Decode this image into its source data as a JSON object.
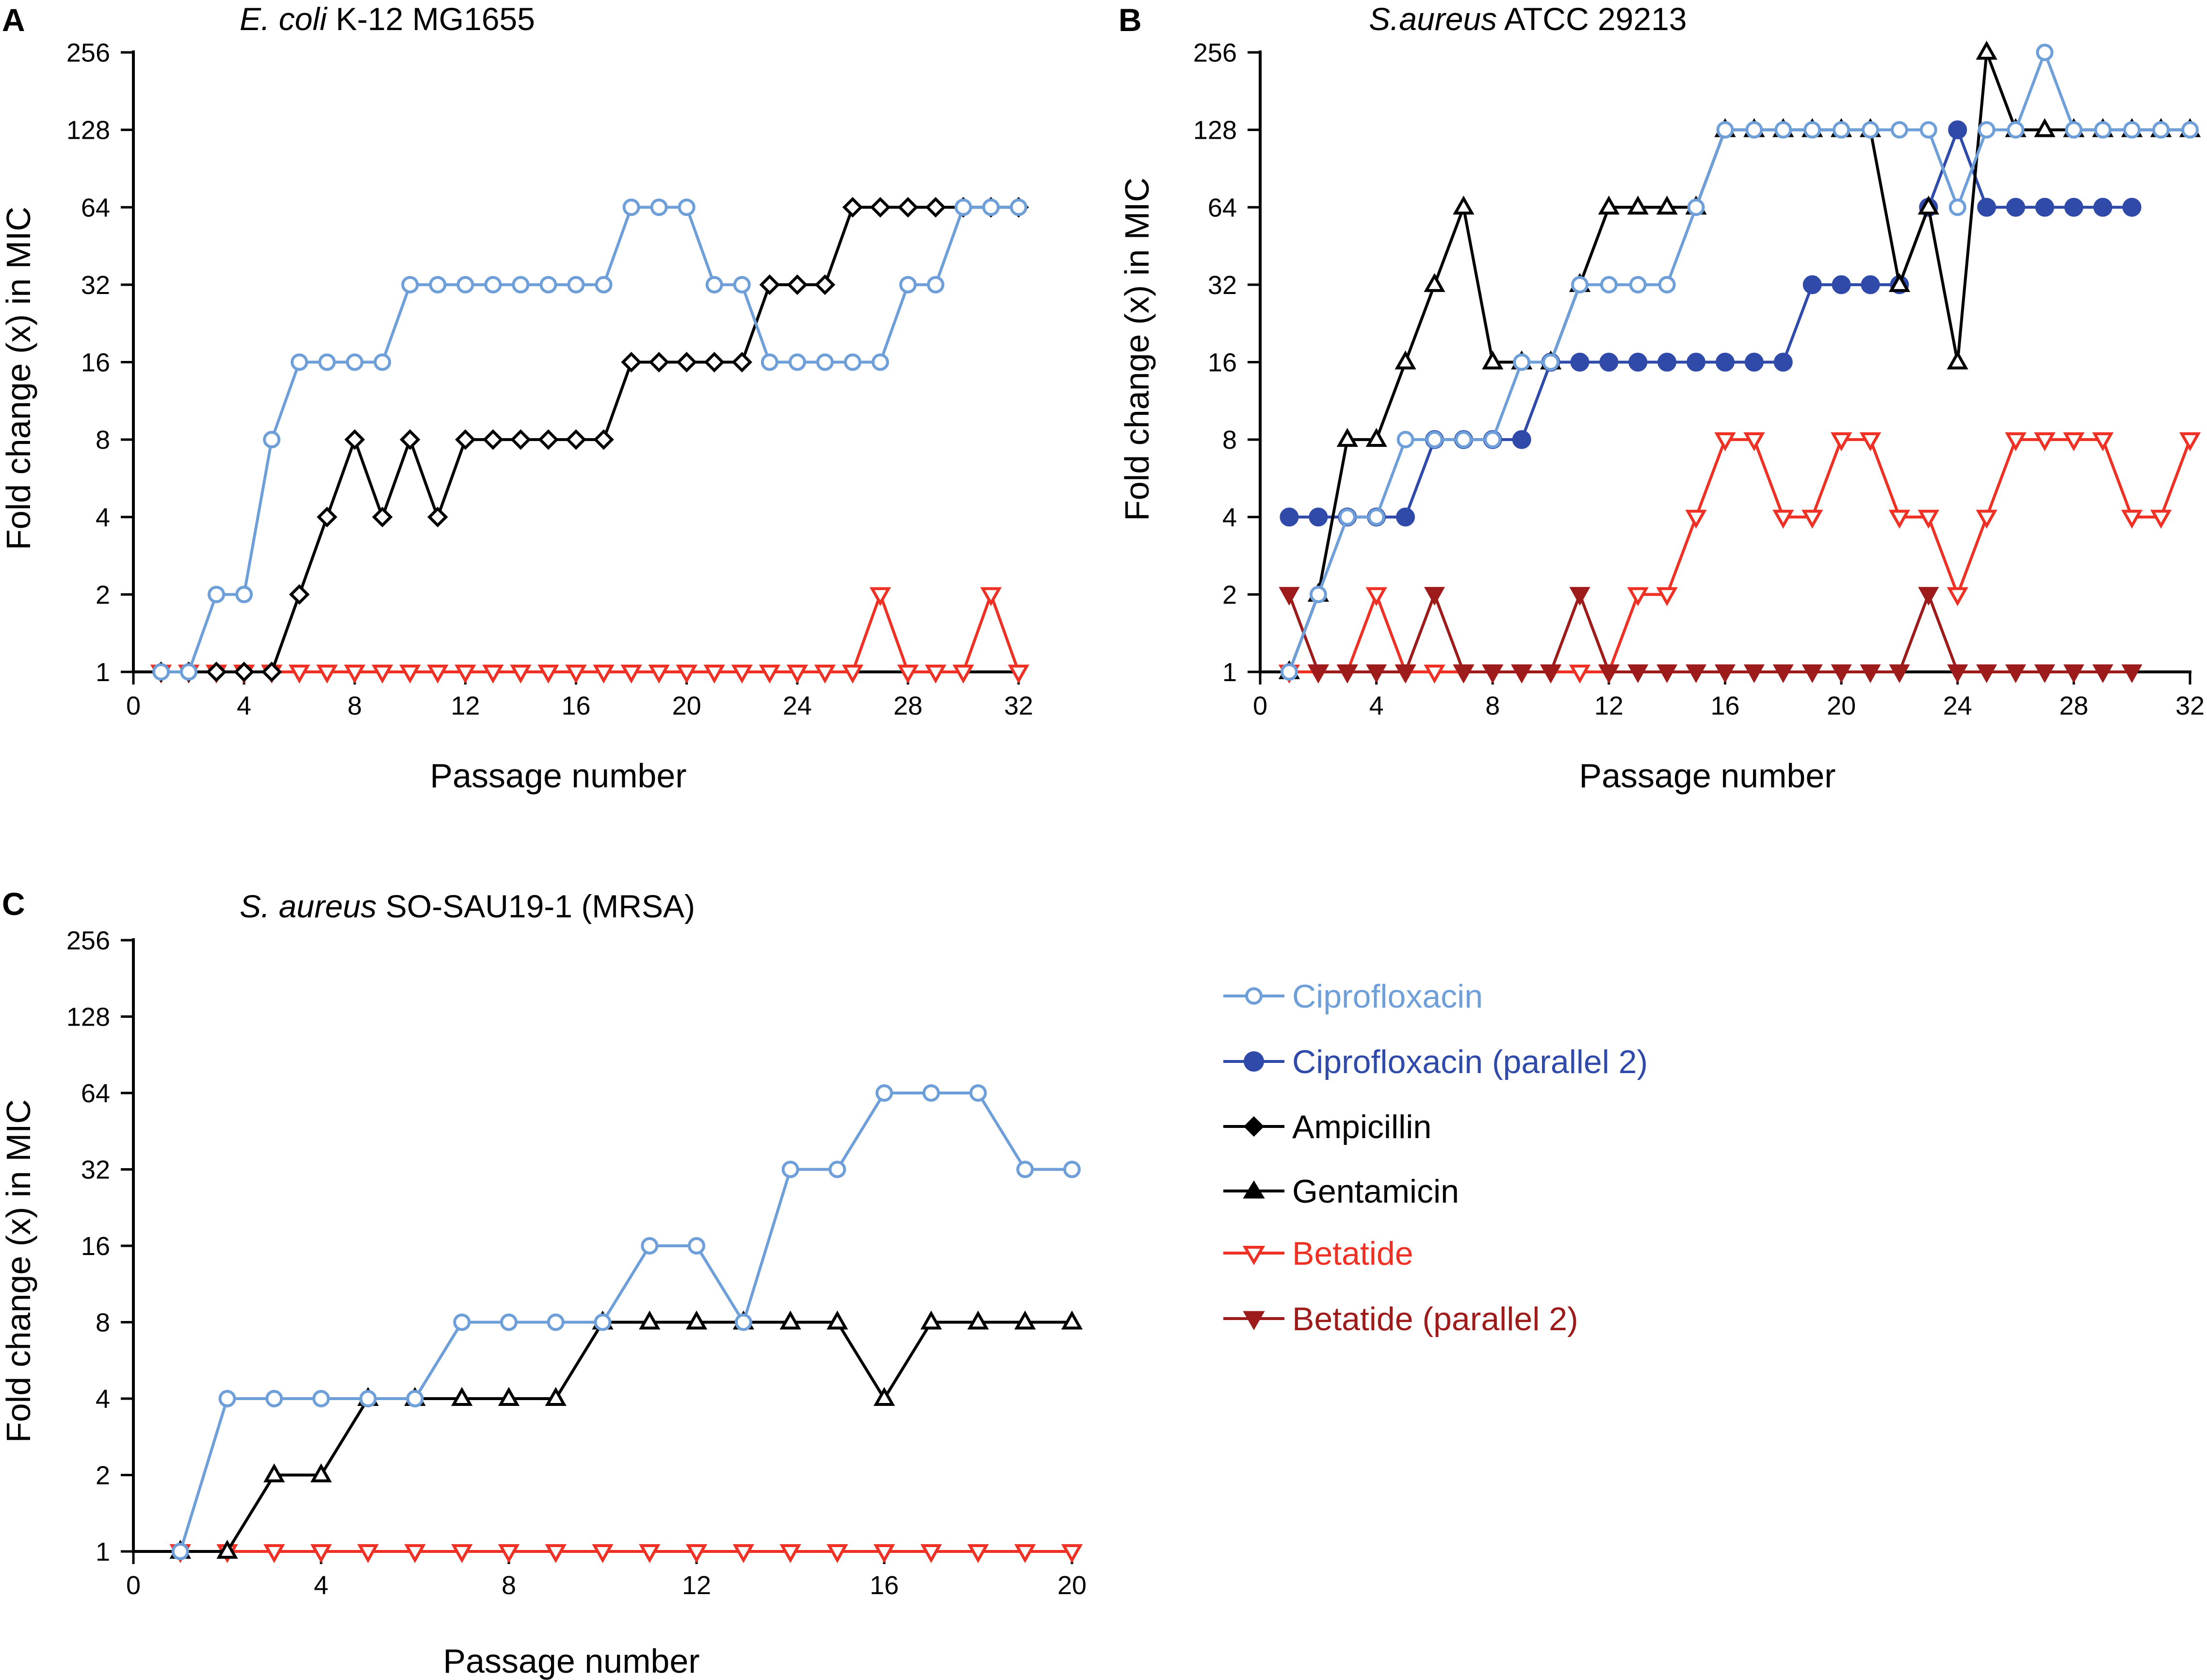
{
  "chart_data": [
    {
      "type": "line",
      "panel": "A",
      "title_italic": "E. coli",
      "title_rest": " K-12 MG1655",
      "xlabel": "Passage number",
      "ylabel": "Fold change (x)  in MIC",
      "yscale": "log2",
      "ylim": [
        1,
        256
      ],
      "yticks": [
        1,
        2,
        4,
        8,
        16,
        32,
        64,
        128,
        256
      ],
      "xlim": [
        0,
        32
      ],
      "xticks": [
        0,
        4,
        8,
        12,
        16,
        20,
        24,
        28,
        32
      ],
      "series": [
        {
          "key": "cipro",
          "name": "Ciprofloxacin",
          "x": [
            1,
            2,
            3,
            4,
            5,
            6,
            7,
            8,
            9,
            10,
            11,
            12,
            13,
            14,
            15,
            16,
            17,
            18,
            19,
            20,
            21,
            22,
            23,
            24,
            25,
            26,
            27,
            28,
            29,
            30,
            31,
            32
          ],
          "y": [
            1,
            1,
            2,
            2,
            8,
            16,
            16,
            16,
            16,
            32,
            32,
            32,
            32,
            32,
            32,
            32,
            32,
            64,
            64,
            64,
            32,
            32,
            16,
            16,
            16,
            16,
            16,
            32,
            32,
            64,
            64,
            64
          ]
        },
        {
          "key": "amp",
          "name": "Ampicillin",
          "x": [
            1,
            2,
            3,
            4,
            5,
            6,
            7,
            8,
            9,
            10,
            11,
            12,
            13,
            14,
            15,
            16,
            17,
            18,
            19,
            20,
            21,
            22,
            23,
            24,
            25,
            26,
            27,
            28,
            29,
            30,
            31,
            32
          ],
          "y": [
            1,
            1,
            1,
            1,
            1,
            2,
            4,
            8,
            4,
            8,
            4,
            8,
            8,
            8,
            8,
            8,
            8,
            16,
            16,
            16,
            16,
            16,
            32,
            32,
            32,
            64,
            64,
            64,
            64,
            64,
            64,
            64
          ]
        },
        {
          "key": "beta",
          "name": "Betatide",
          "x": [
            1,
            2,
            3,
            4,
            5,
            6,
            7,
            8,
            9,
            10,
            11,
            12,
            13,
            14,
            15,
            16,
            17,
            18,
            19,
            20,
            21,
            22,
            23,
            24,
            25,
            26,
            27,
            28,
            29,
            30,
            31,
            32
          ],
          "y": [
            1,
            1,
            1,
            1,
            1,
            1,
            1,
            1,
            1,
            1,
            1,
            1,
            1,
            1,
            1,
            1,
            1,
            1,
            1,
            1,
            1,
            1,
            1,
            1,
            1,
            1,
            2,
            1,
            1,
            1,
            2,
            1
          ]
        }
      ]
    },
    {
      "type": "line",
      "panel": "B",
      "title_italic": "S.aureus",
      "title_rest": " ATCC 29213",
      "xlabel": "Passage number",
      "ylabel": "Fold change (x) in MIC",
      "yscale": "log2",
      "ylim": [
        1,
        256
      ],
      "yticks": [
        1,
        2,
        4,
        8,
        16,
        32,
        64,
        128,
        256
      ],
      "xlim": [
        0,
        32
      ],
      "xticks": [
        0,
        4,
        8,
        12,
        16,
        20,
        24,
        28,
        32
      ],
      "series": [
        {
          "key": "cipro",
          "name": "Ciprofloxacin",
          "x": [
            1,
            2,
            3,
            4,
            5,
            6,
            7,
            8,
            9,
            10,
            11,
            12,
            13,
            14,
            15,
            16,
            17,
            18,
            19,
            20,
            21,
            22,
            23,
            24,
            25,
            26,
            27,
            28,
            29,
            30,
            31,
            32
          ],
          "y": [
            1,
            2,
            4,
            4,
            8,
            8,
            8,
            8,
            16,
            16,
            32,
            32,
            32,
            32,
            64,
            128,
            128,
            128,
            128,
            128,
            128,
            128,
            128,
            64,
            128,
            128,
            256,
            128,
            128,
            128,
            128,
            128
          ]
        },
        {
          "key": "cipro2",
          "name": "Ciprofloxacin (parallel 2)",
          "x": [
            1,
            2,
            3,
            4,
            5,
            6,
            7,
            8,
            9,
            10,
            11,
            12,
            13,
            14,
            15,
            16,
            17,
            18,
            19,
            20,
            21,
            22,
            23,
            24,
            25,
            26,
            27,
            28,
            29,
            30
          ],
          "y": [
            4,
            4,
            4,
            4,
            4,
            8,
            8,
            8,
            8,
            16,
            16,
            16,
            16,
            16,
            16,
            16,
            16,
            16,
            32,
            32,
            32,
            32,
            64,
            128,
            64,
            64,
            64,
            64,
            64,
            64
          ]
        },
        {
          "key": "genta",
          "name": "Gentamicin",
          "x": [
            1,
            2,
            3,
            4,
            5,
            6,
            7,
            8,
            9,
            10,
            11,
            12,
            13,
            14,
            15,
            16,
            17,
            18,
            19,
            20,
            21,
            22,
            23,
            24,
            25,
            26,
            27,
            28,
            29,
            30,
            31,
            32
          ],
          "y": [
            1,
            2,
            8,
            8,
            16,
            32,
            64,
            16,
            16,
            16,
            32,
            64,
            64,
            64,
            64,
            128,
            128,
            128,
            128,
            128,
            128,
            32,
            64,
            16,
            256,
            128,
            128,
            128,
            128,
            128,
            128,
            128
          ]
        },
        {
          "key": "beta",
          "name": "Betatide",
          "x": [
            1,
            2,
            3,
            4,
            5,
            6,
            7,
            8,
            9,
            10,
            11,
            12,
            13,
            14,
            15,
            16,
            17,
            18,
            19,
            20,
            21,
            22,
            23,
            24,
            25,
            26,
            27,
            28,
            29,
            30,
            31,
            32
          ],
          "y": [
            1,
            1,
            1,
            2,
            1,
            1,
            1,
            1,
            1,
            1,
            1,
            1,
            2,
            2,
            4,
            8,
            8,
            4,
            4,
            8,
            8,
            4,
            4,
            2,
            4,
            8,
            8,
            8,
            8,
            4,
            4,
            8
          ]
        },
        {
          "key": "beta2",
          "name": "Betatide (parallel 2)",
          "x": [
            1,
            2,
            3,
            4,
            5,
            6,
            7,
            8,
            9,
            10,
            11,
            12,
            13,
            14,
            15,
            16,
            17,
            18,
            19,
            20,
            21,
            22,
            23,
            24,
            25,
            26,
            27,
            28,
            29,
            30
          ],
          "y": [
            2,
            1,
            1,
            1,
            1,
            2,
            1,
            1,
            1,
            1,
            2,
            1,
            1,
            1,
            1,
            1,
            1,
            1,
            1,
            1,
            1,
            1,
            2,
            1,
            1,
            1,
            1,
            1,
            1,
            1
          ]
        }
      ]
    },
    {
      "type": "line",
      "panel": "C",
      "title_italic": "S. aureus",
      "title_rest": " SO-SAU19-1 (MRSA)",
      "xlabel": "Passage number",
      "ylabel": "Fold change (x) in MIC",
      "yscale": "log2",
      "ylim": [
        1,
        256
      ],
      "yticks": [
        1,
        2,
        4,
        8,
        16,
        32,
        64,
        128,
        256
      ],
      "xlim": [
        0,
        20
      ],
      "xticks": [
        0,
        4,
        8,
        12,
        16,
        20
      ],
      "series": [
        {
          "key": "cipro",
          "name": "Ciprofloxacin",
          "x": [
            1,
            2,
            3,
            4,
            5,
            6,
            7,
            8,
            9,
            10,
            11,
            12,
            13,
            14,
            15,
            16,
            17,
            18,
            19,
            20
          ],
          "y": [
            1,
            4,
            4,
            4,
            4,
            4,
            8,
            8,
            8,
            8,
            16,
            16,
            8,
            32,
            32,
            64,
            64,
            64,
            32,
            32
          ]
        },
        {
          "key": "genta",
          "name": "Gentamicin",
          "x": [
            1,
            2,
            3,
            4,
            5,
            6,
            7,
            8,
            9,
            10,
            11,
            12,
            13,
            14,
            15,
            16,
            17,
            18,
            19,
            20
          ],
          "y": [
            1,
            1,
            2,
            2,
            4,
            4,
            4,
            4,
            4,
            8,
            8,
            8,
            8,
            8,
            8,
            4,
            8,
            8,
            8,
            8
          ]
        },
        {
          "key": "beta",
          "name": "Betatide",
          "x": [
            1,
            2,
            3,
            4,
            5,
            6,
            7,
            8,
            9,
            10,
            11,
            12,
            13,
            14,
            15,
            16,
            17,
            18,
            19,
            20
          ],
          "y": [
            1,
            1,
            1,
            1,
            1,
            1,
            1,
            1,
            1,
            1,
            1,
            1,
            1,
            1,
            1,
            1,
            1,
            1,
            1,
            1
          ]
        }
      ]
    }
  ],
  "legend": [
    {
      "key": "cipro",
      "label": "Ciprofloxacin"
    },
    {
      "key": "cipro2",
      "label": "Ciprofloxacin (parallel 2)"
    },
    {
      "key": "amp",
      "label": "Ampicillin"
    },
    {
      "key": "genta",
      "label": "Gentamicin"
    },
    {
      "key": "beta",
      "label": "Betatide"
    },
    {
      "key": "beta2",
      "label": "Betatide (parallel 2)"
    }
  ],
  "series_styles": {
    "cipro": {
      "color": "#6f9fd8",
      "marker": "circle-open"
    },
    "cipro2": {
      "color": "#2f4aa8",
      "marker": "circle-filled"
    },
    "amp": {
      "color": "#000000",
      "marker": "diamond-open"
    },
    "genta": {
      "color": "#000000",
      "marker": "triangle-up-open"
    },
    "beta": {
      "color": "#ee3124",
      "marker": "triangle-down-open"
    },
    "beta2": {
      "color": "#9e1b1b",
      "marker": "triangle-down-filled"
    }
  }
}
